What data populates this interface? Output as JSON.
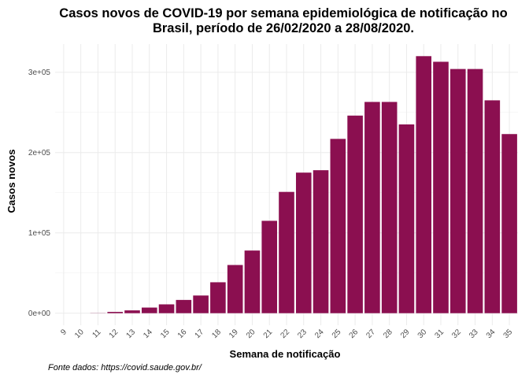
{
  "chart_data": {
    "type": "bar",
    "title_lines": [
      "Casos novos de COVID-19 por semana epidemiológica de notificação no",
      "Brasil, período de 26/02/2020 a 28/08/2020."
    ],
    "xlabel": "Semana de notificação",
    "ylabel": "Casos novos",
    "caption": "Fonte dados: https://covid.saude.gov.br/",
    "categories": [
      "9",
      "10",
      "11",
      "12",
      "13",
      "14",
      "15",
      "16",
      "17",
      "18",
      "19",
      "20",
      "21",
      "22",
      "23",
      "24",
      "25",
      "26",
      "27",
      "28",
      "29",
      "30",
      "31",
      "32",
      "33",
      "34",
      "35"
    ],
    "values": [
      0,
      0,
      200,
      1600,
      3500,
      7000,
      11000,
      16500,
      22000,
      38500,
      60000,
      78000,
      115000,
      151000,
      175000,
      178000,
      217000,
      246000,
      263000,
      263000,
      235000,
      320000,
      313000,
      304000,
      304000,
      265000,
      223000
    ],
    "y_ticks": [
      0,
      100000,
      200000,
      300000
    ],
    "y_tick_labels": [
      "0e+00",
      "1e+05",
      "2e+05",
      "3e+05"
    ],
    "ylim": [
      -15000,
      335000
    ],
    "bar_color": "#8b0f50",
    "grid": true
  }
}
